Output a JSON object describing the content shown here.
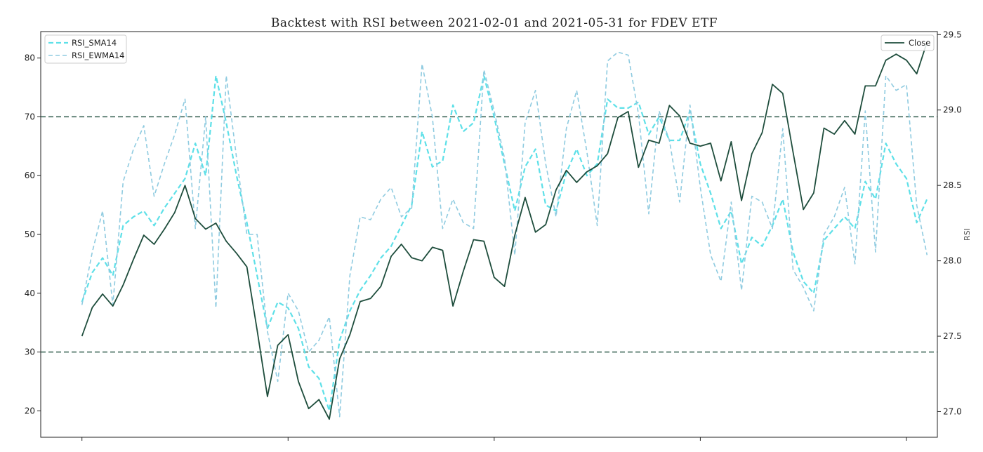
{
  "chart_data": {
    "type": "line",
    "title": "Backtest with RSI between 2021-02-01 and 2021-05-31 for FDEV ETF",
    "ylabel_right": "RSI",
    "left_axis": {
      "ylim": [
        15.5,
        84.5
      ],
      "ticks": [
        20,
        30,
        40,
        50,
        60,
        70,
        80
      ]
    },
    "right_axis": {
      "ylim": [
        26.83,
        29.52
      ],
      "ticks": [
        "27.0",
        "27.5",
        "28.0",
        "28.5",
        "29.0",
        "29.5"
      ],
      "tick_values": [
        27.0,
        27.5,
        28.0,
        28.5,
        29.0,
        29.5
      ]
    },
    "x_index_range": [
      -4,
      83
    ],
    "x_major_tick_indices": [
      0,
      20,
      40,
      60,
      80
    ],
    "thresholds": [
      70,
      30
    ],
    "legend_left": [
      "RSI_SMA14",
      "RSI_EWMA14"
    ],
    "legend_right": [
      "Close"
    ],
    "series": [
      {
        "name": "RSI_SMA14",
        "axis": "left",
        "color": "#5ee0e8",
        "style": "dashed",
        "width": 2.2,
        "values": [
          38.5,
          43.5,
          46,
          43,
          51.5,
          53,
          54,
          51.5,
          54.5,
          57,
          59.5,
          65.5,
          60,
          77,
          69,
          60,
          52,
          43,
          34,
          38.5,
          37.5,
          34,
          27.5,
          25.5,
          20,
          32,
          37,
          40.5,
          43,
          46,
          48,
          51.5,
          55,
          67.5,
          61.5,
          62.5,
          72,
          67.5,
          69,
          77,
          70,
          62,
          54,
          61.5,
          64.5,
          55,
          54,
          60.5,
          64.5,
          60,
          62,
          73,
          71.5,
          71.5,
          72.5,
          67,
          70,
          66,
          66,
          71,
          62,
          57,
          51,
          54,
          45,
          49.5,
          48,
          51.5,
          56,
          47,
          42,
          40,
          49,
          51,
          53,
          51,
          59,
          56,
          65.5,
          62,
          59.5,
          52,
          56
        ]
      },
      {
        "name": "RSI_EWMA14",
        "axis": "left",
        "color": "#8fcbe0",
        "style": "dashed",
        "width": 1.6,
        "values": [
          38,
          47,
          54,
          38,
          59,
          64.5,
          68.5,
          56.5,
          62,
          67,
          73,
          51,
          70,
          37.5,
          77,
          63,
          50,
          50,
          33.5,
          25,
          40,
          37,
          30,
          32,
          36,
          19,
          43,
          53,
          52.5,
          56,
          58,
          53,
          54.5,
          79,
          70,
          51,
          56,
          52,
          51,
          78,
          71,
          63,
          46.5,
          69,
          74.5,
          62,
          53,
          68,
          74.5,
          64,
          51.5,
          79.5,
          81,
          80.5,
          70.5,
          53.5,
          71,
          66,
          55.5,
          72,
          58,
          46.5,
          42,
          55.5,
          40.5,
          56.5,
          55.5,
          51,
          68,
          44,
          41,
          37,
          50,
          53,
          58,
          45,
          71,
          47,
          77,
          74.5,
          75.5,
          55,
          46.5
        ]
      },
      {
        "name": "Close",
        "axis": "right",
        "color": "#1e4d3c",
        "style": "solid",
        "width": 1.8,
        "values": [
          27.5,
          27.69,
          27.78,
          27.7,
          27.84,
          28.01,
          28.17,
          28.11,
          28.21,
          28.32,
          28.5,
          28.28,
          28.21,
          28.25,
          28.13,
          28.05,
          27.96,
          27.54,
          27.1,
          27.44,
          27.51,
          27.2,
          27.02,
          27.08,
          26.95,
          27.35,
          27.51,
          27.73,
          27.75,
          27.83,
          28.03,
          28.11,
          28.02,
          28.0,
          28.09,
          28.07,
          27.7,
          27.93,
          28.14,
          28.13,
          27.89,
          27.83,
          28.17,
          28.42,
          28.19,
          28.24,
          28.47,
          28.6,
          28.52,
          28.59,
          28.63,
          28.71,
          28.95,
          28.99,
          28.62,
          28.8,
          28.78,
          29.03,
          28.96,
          28.78,
          28.76,
          28.78,
          28.53,
          28.79,
          28.4,
          28.71,
          28.85,
          29.17,
          29.11,
          28.72,
          28.34,
          28.45,
          28.88,
          28.84,
          28.93,
          28.84,
          29.16,
          29.16,
          29.33,
          29.37,
          29.33,
          29.24,
          29.45
        ]
      }
    ]
  }
}
